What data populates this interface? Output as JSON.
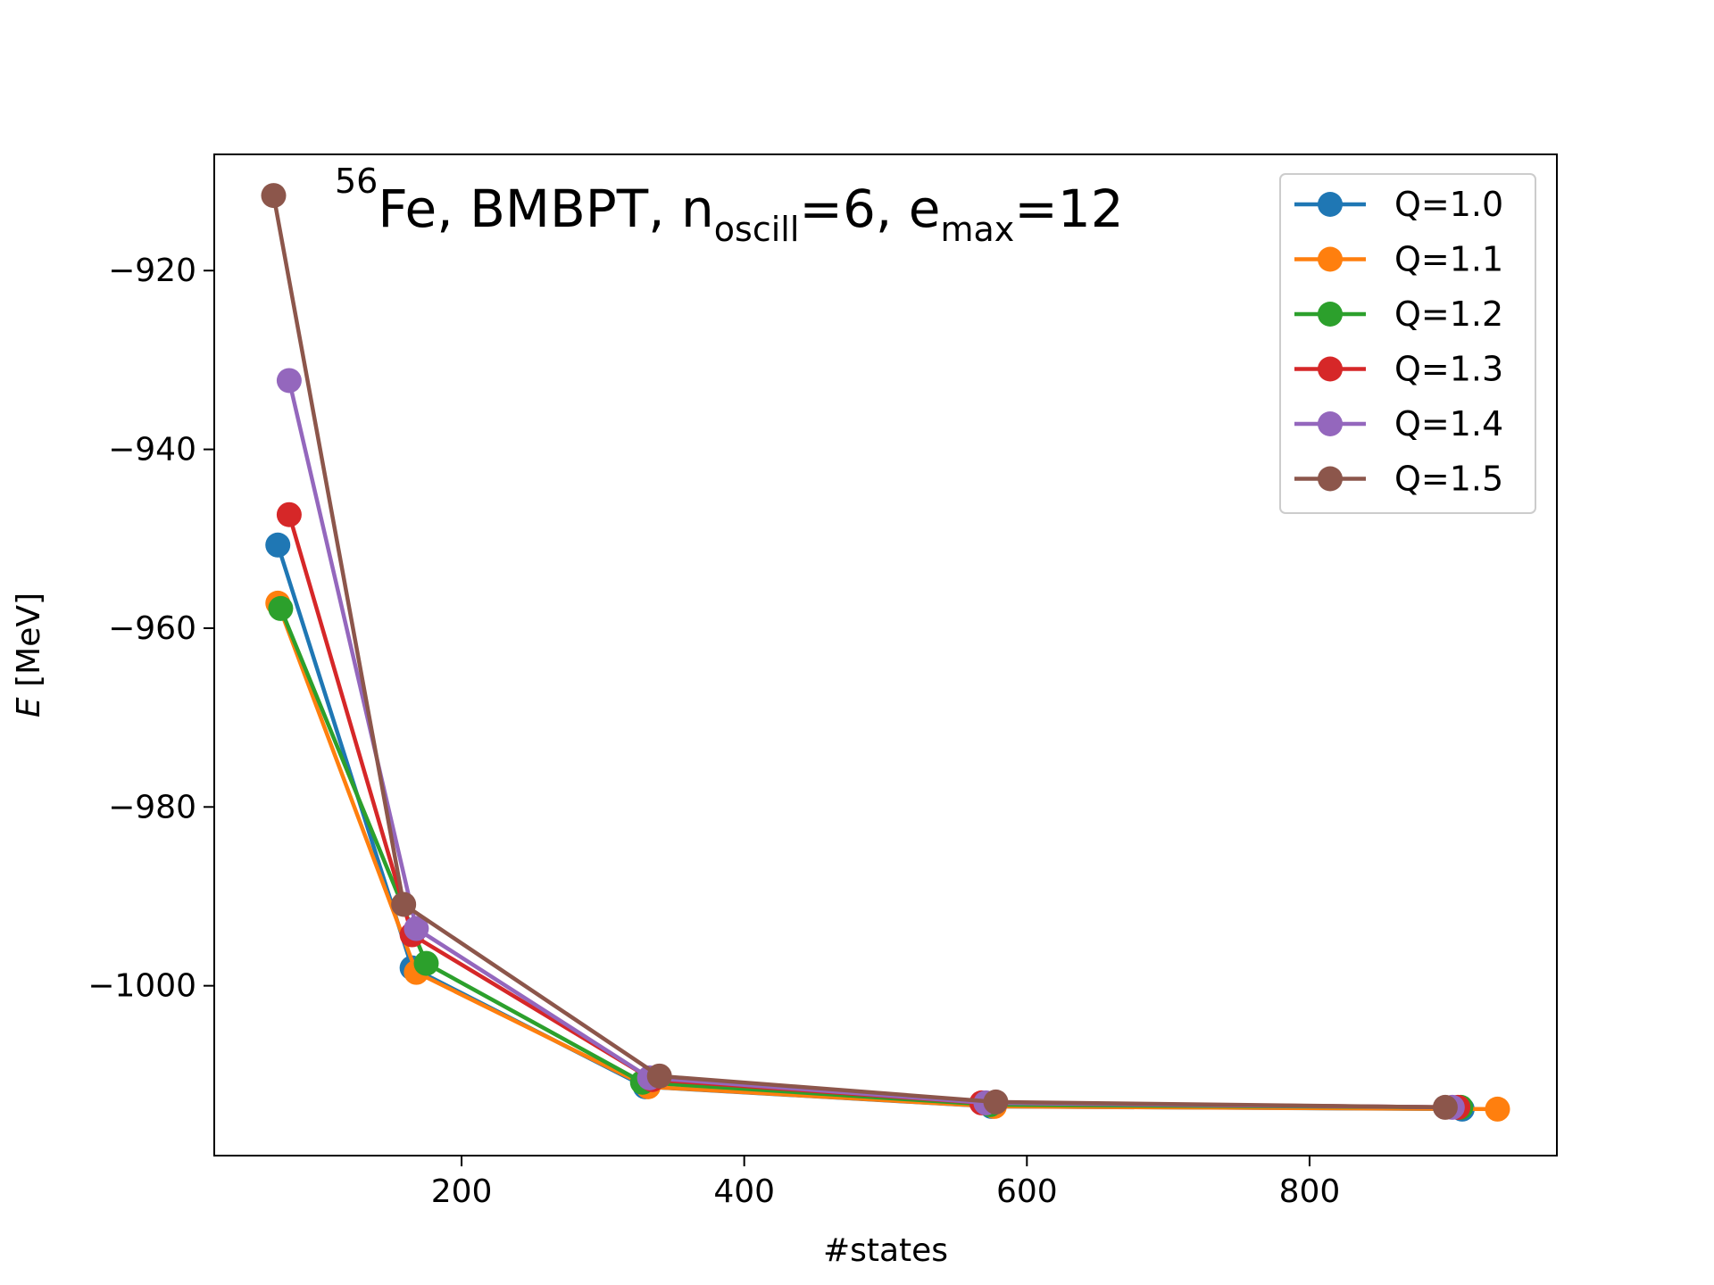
{
  "chart_data": {
    "type": "line",
    "title": {
      "pre_sup": "56",
      "main": "Fe, BMBPT, n",
      "sub1": "oscill",
      "mid": "=6, e",
      "sub2": "max",
      "post": "=12"
    },
    "xlabel": "#states",
    "ylabel_italic": "E",
    "ylabel_rest": " [MeV]",
    "xlim": [
      25,
      975
    ],
    "ylim": [
      -1019,
      -907
    ],
    "xticks": [
      200,
      400,
      600,
      800
    ],
    "xtick_labels": [
      "200",
      "400",
      "600",
      "800"
    ],
    "yticks": [
      -920,
      -940,
      -960,
      -980,
      -1000
    ],
    "ytick_labels": [
      "−920",
      "−940",
      "−960",
      "−980",
      "−1000"
    ],
    "grid": false,
    "legend_position": "top-right",
    "series": [
      {
        "name": "Q=1.0",
        "color": "#1f77b4",
        "x": [
          70,
          165,
          330,
          575,
          908
        ],
        "y": [
          -950.7,
          -998.0,
          -1011.3,
          -1013.5,
          -1013.8
        ]
      },
      {
        "name": "Q=1.1",
        "color": "#ff7f0e",
        "x": [
          70,
          168,
          332,
          577,
          933
        ],
        "y": [
          -957.2,
          -998.5,
          -1011.3,
          -1013.5,
          -1013.8
        ]
      },
      {
        "name": "Q=1.2",
        "color": "#2ca02c",
        "x": [
          72,
          175,
          328,
          574,
          907
        ],
        "y": [
          -957.8,
          -997.5,
          -1010.8,
          -1013.3,
          -1013.6
        ]
      },
      {
        "name": "Q=1.3",
        "color": "#d62728",
        "x": [
          78,
          165,
          335,
          568,
          905
        ],
        "y": [
          -947.3,
          -994.3,
          -1010.5,
          -1013.1,
          -1013.6
        ]
      },
      {
        "name": "Q=1.4",
        "color": "#9467bd",
        "x": [
          78,
          168,
          333,
          571,
          901
        ],
        "y": [
          -932.3,
          -993.6,
          -1010.3,
          -1013.1,
          -1013.6
        ]
      },
      {
        "name": "Q=1.5",
        "color": "#8c564b",
        "x": [
          67,
          159,
          340,
          578,
          896
        ],
        "y": [
          -911.6,
          -990.9,
          -1010.1,
          -1013.0,
          -1013.6
        ]
      }
    ]
  }
}
